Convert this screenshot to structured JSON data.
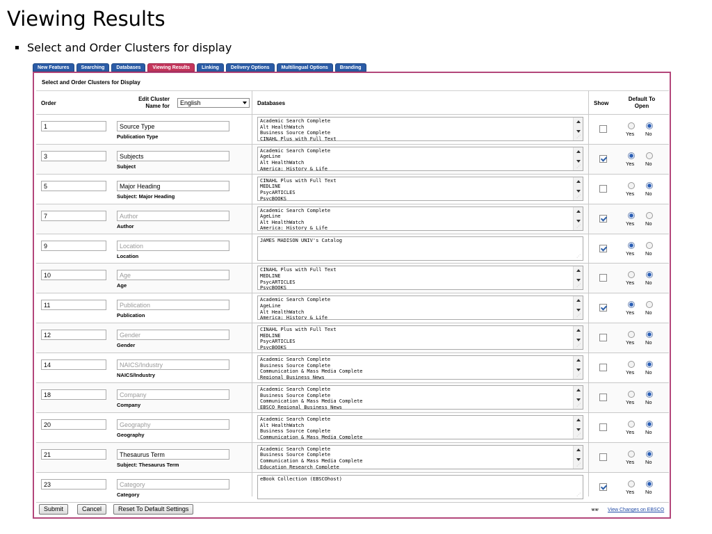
{
  "slide": {
    "title": "Viewing Results",
    "bullet": "Select and Order Clusters for display"
  },
  "tabs": [
    {
      "label": "New Features",
      "active": false
    },
    {
      "label": "Searching",
      "active": false
    },
    {
      "label": "Databases",
      "active": false
    },
    {
      "label": "Viewing Results",
      "active": true
    },
    {
      "label": "Linking",
      "active": false
    },
    {
      "label": "Delivery Options",
      "active": false
    },
    {
      "label": "Multilingual Options",
      "active": false
    },
    {
      "label": "Branding",
      "active": false
    }
  ],
  "panel": {
    "title": "Select and Order Clusters for Display",
    "headers": {
      "order": "Order",
      "edit_cluster": "Edit Cluster Name for",
      "language": "English",
      "databases": "Databases",
      "show": "Show",
      "default_open": "Default To Open"
    },
    "yes_label": "Yes",
    "no_label": "No"
  },
  "rows": [
    {
      "order": "1",
      "name": "Source Type",
      "name_style": "dark",
      "sublabel": "Publication Type",
      "databases": [
        "Academic Search Complete",
        "Alt HealthWatch",
        "Business Source Complete",
        "CINAHL Plus with Full Text"
      ],
      "scroll": true,
      "show": false,
      "default_open": "no"
    },
    {
      "order": "3",
      "name": "Subjects",
      "name_style": "dark",
      "sublabel": "Subject",
      "databases": [
        "Academic Search Complete",
        "AgeLine",
        "Alt HealthWatch",
        "America: History & Life"
      ],
      "scroll": true,
      "show": true,
      "default_open": "yes"
    },
    {
      "order": "5",
      "name": "Major Heading",
      "name_style": "dark",
      "sublabel": "Subject: Major Heading",
      "databases": [
        "CINAHL Plus with Full Text",
        "MEDLINE",
        "PsycARTICLES",
        "PsycBOOKS"
      ],
      "scroll": true,
      "show": false,
      "default_open": "no"
    },
    {
      "order": "7",
      "name": "Author",
      "name_style": "dim",
      "sublabel": "Author",
      "databases": [
        "Academic Search Complete",
        "AgeLine",
        "Alt HealthWatch",
        "America: History & Life"
      ],
      "scroll": true,
      "show": true,
      "default_open": "yes"
    },
    {
      "order": "9",
      "name": "Location",
      "name_style": "dim",
      "sublabel": "Location",
      "databases": [
        "JAMES MADISON UNIV's Catalog"
      ],
      "scroll": false,
      "show": true,
      "default_open": "yes"
    },
    {
      "order": "10",
      "name": "Age",
      "name_style": "dim",
      "sublabel": "Age",
      "databases": [
        "CINAHL Plus with Full Text",
        "MEDLINE",
        "PsycARTICLES",
        "PsycBOOKS"
      ],
      "scroll": true,
      "show": false,
      "default_open": "no"
    },
    {
      "order": "11",
      "name": "Publication",
      "name_style": "dim",
      "sublabel": "Publication",
      "databases": [
        "Academic Search Complete",
        "AgeLine",
        "Alt HealthWatch",
        "America: History & Life"
      ],
      "scroll": true,
      "show": true,
      "default_open": "yes"
    },
    {
      "order": "12",
      "name": "Gender",
      "name_style": "dim",
      "sublabel": "Gender",
      "databases": [
        "CINAHL Plus with Full Text",
        "MEDLINE",
        "PsycARTICLES",
        "PsycBOOKS"
      ],
      "scroll": true,
      "show": false,
      "default_open": "no"
    },
    {
      "order": "14",
      "name": "NAICS/Industry",
      "name_style": "dim",
      "sublabel": "NAICS/Industry",
      "databases": [
        "Academic Search Complete",
        "Business Source Complete",
        "Communication & Mass Media Complete",
        "Regional Business News"
      ],
      "scroll": true,
      "show": false,
      "default_open": "no"
    },
    {
      "order": "18",
      "name": "Company",
      "name_style": "dim",
      "sublabel": "Company",
      "databases": [
        "Academic Search Complete",
        "Business Source Complete",
        "Communication & Mass Media Complete",
        "EBSCO Regional Business News"
      ],
      "scroll": true,
      "show": false,
      "default_open": "no"
    },
    {
      "order": "20",
      "name": "Geography",
      "name_style": "dim",
      "sublabel": "Geography",
      "databases": [
        "Academic Search Complete",
        "Alt HealthWatch",
        "Business Source Complete",
        "Communication & Mass Media Complete"
      ],
      "scroll": true,
      "show": false,
      "default_open": "no"
    },
    {
      "order": "21",
      "name": "Thesaurus Term",
      "name_style": "dark",
      "sublabel": "Subject: Thesaurus Term",
      "databases": [
        "Academic Search Complete",
        "Business Source Complete",
        "Communication & Mass Media Complete",
        "Education Research Complete"
      ],
      "scroll": true,
      "show": false,
      "default_open": "no"
    },
    {
      "order": "23",
      "name": "Category",
      "name_style": "dim",
      "sublabel": "Category",
      "databases": [
        "eBook Collection (EBSCOhost)"
      ],
      "scroll": false,
      "show": true,
      "default_open": "no"
    }
  ],
  "footer": {
    "submit": "Submit",
    "cancel": "Cancel",
    "reset": "Reset To Default Settings",
    "view_changes": "View Changes on EBSCO"
  }
}
